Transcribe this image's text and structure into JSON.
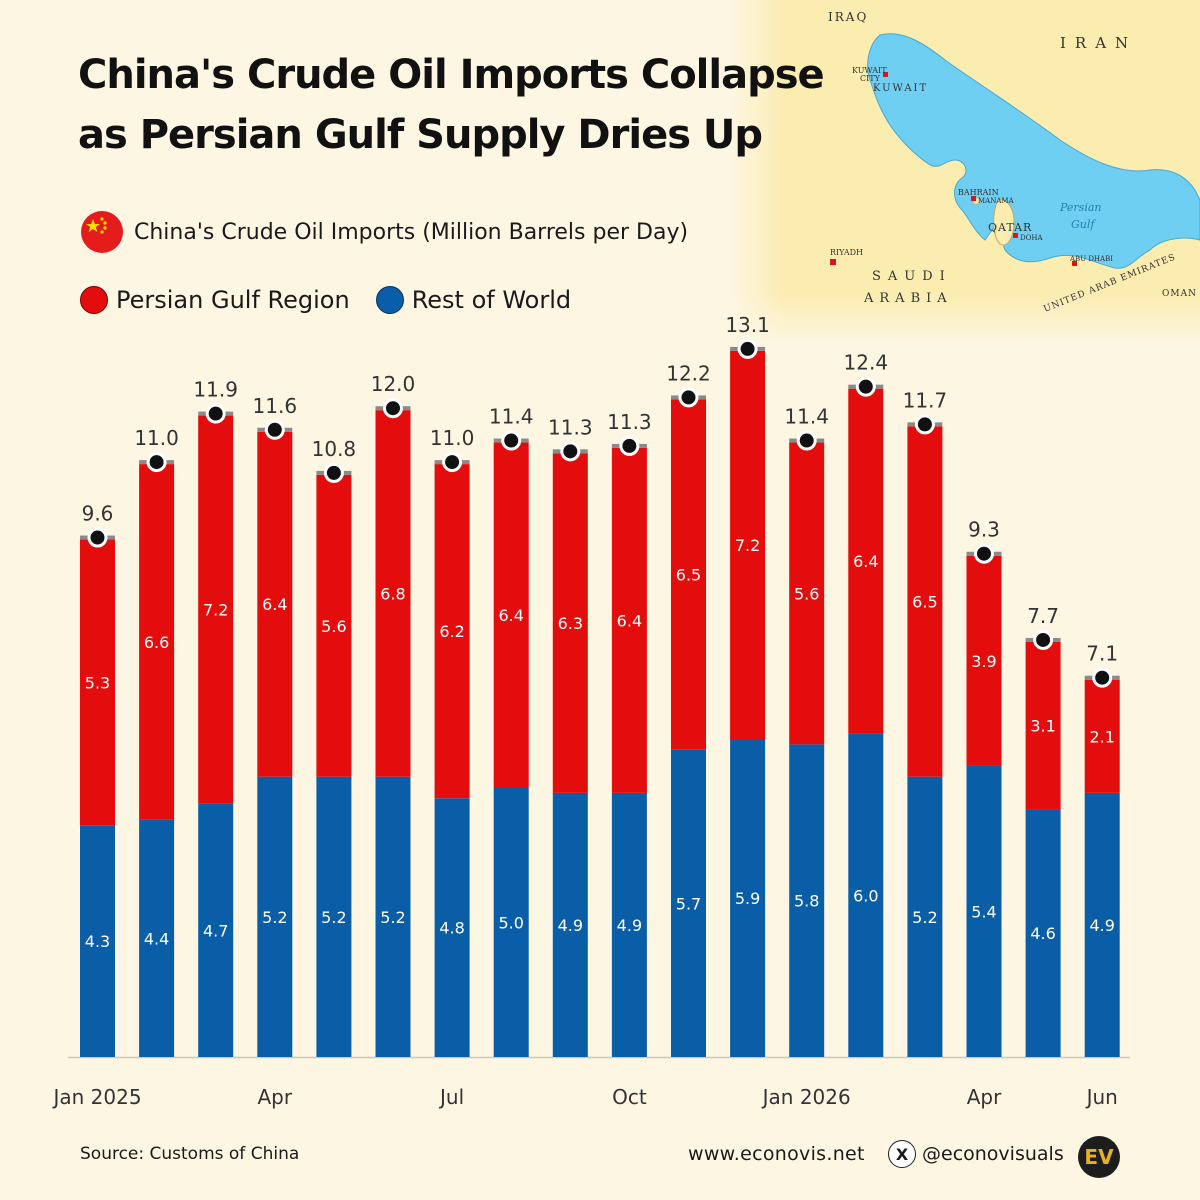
{
  "title_line1": "China's Crude Oil Imports Collapse",
  "title_line2": "as Persian Gulf Supply Dries Up",
  "subtitle": "China's Crude Oil Imports (Million Barrels per Day)",
  "legend": {
    "gulf": "Persian Gulf Region",
    "rest": "Rest of World"
  },
  "colors": {
    "gulf": "#e30d0d",
    "rest": "#0a5ea8",
    "background": "#fdf6e3",
    "sea": "#6ecff2",
    "land": "#fbecb0"
  },
  "map": {
    "labels": [
      "IRAQ",
      "IRAN",
      "KUWAIT",
      "KUWAIT CITY",
      "BAHRAIN",
      "MANAMA",
      "QATAR",
      "DOHA",
      "RIYADH",
      "SAUDI",
      "ARABIA",
      "Persian",
      "Gulf",
      "ABU DHABI",
      "UNITED ARAB EMIRATES",
      "OMAN"
    ]
  },
  "chart_data": {
    "type": "bar",
    "stacked": true,
    "categories": [
      "Jan 2025",
      "Feb 2025",
      "Mar 2025",
      "Apr 2025",
      "May 2025",
      "Jun 2025",
      "Jul 2025",
      "Aug 2025",
      "Sep 2025",
      "Oct 2025",
      "Nov 2025",
      "Dec 2025",
      "Jan 2026",
      "Feb 2026",
      "Mar 2026",
      "Apr 2026",
      "May 2026",
      "Jun 2026"
    ],
    "tick_labels": [
      "Jan 2025",
      "",
      "",
      "Apr",
      "",
      "",
      "Jul",
      "",
      "",
      "Oct",
      "",
      "",
      "Jan 2026",
      "",
      "",
      "Apr",
      "",
      "Jun"
    ],
    "series": [
      {
        "name": "Rest of World",
        "values": [
          4.3,
          4.4,
          4.7,
          5.2,
          5.2,
          5.2,
          4.8,
          5.0,
          4.9,
          4.9,
          5.7,
          5.9,
          5.8,
          6.0,
          5.2,
          5.4,
          4.6,
          4.9
        ]
      },
      {
        "name": "Persian Gulf Region",
        "values": [
          5.3,
          6.6,
          7.2,
          6.4,
          5.6,
          6.8,
          6.2,
          6.4,
          6.3,
          6.4,
          6.5,
          7.2,
          5.6,
          6.4,
          6.5,
          3.9,
          3.1,
          2.1
        ]
      }
    ],
    "totals": [
      9.6,
      11.0,
      11.9,
      11.6,
      10.8,
      12.0,
      11.0,
      11.4,
      11.3,
      11.3,
      12.2,
      13.1,
      11.4,
      12.4,
      11.7,
      9.3,
      7.7,
      7.1
    ],
    "ylim": [
      0,
      13.5
    ],
    "grid": false
  },
  "footer": {
    "source": "Source: Customs of China",
    "website": "www.econovis.net",
    "x_glyph": "X",
    "handle": "@econovisuals",
    "logo": "EV"
  }
}
